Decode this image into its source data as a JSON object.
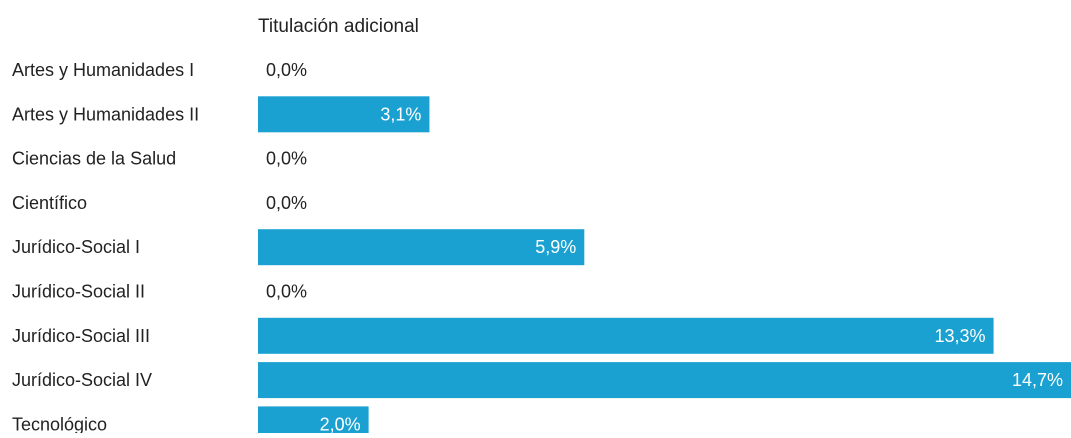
{
  "chart_data": {
    "type": "bar",
    "orientation": "horizontal",
    "title": "Titulación adicional",
    "xlabel": "",
    "ylabel": "",
    "grid": false,
    "legend": "none",
    "bar_color": "#1ba1d1",
    "xlim": [
      0,
      14.7
    ],
    "categories": [
      "Artes y Humanidades I",
      "Artes y Humanidades II",
      "Ciencias de la Salud",
      "Científico",
      "Jurídico-Social I",
      "Jurídico-Social II",
      "Jurídico-Social III",
      "Jurídico-Social IV",
      "Tecnológico"
    ],
    "values": [
      0.0,
      3.1,
      0.0,
      0.0,
      5.9,
      0.0,
      13.3,
      14.7,
      2.0
    ],
    "value_labels": [
      "0,0%",
      "3,1%",
      "0,0%",
      "0,0%",
      "5,9%",
      "0,0%",
      "13,3%",
      "14,7%",
      "2,0%"
    ]
  }
}
